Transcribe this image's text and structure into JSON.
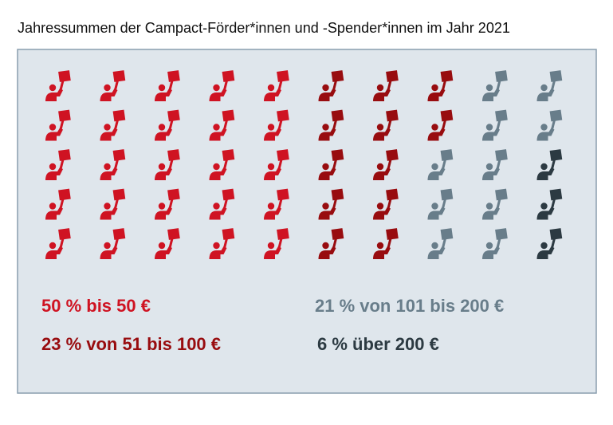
{
  "chart_data": {
    "type": "pictogram",
    "title": "Jahressummen der Campact-Förder*innen und -Spender*innen im Jahr 2021",
    "values": [
      50,
      23,
      21,
      6
    ],
    "value_labels": [
      "50 % bis 50 €",
      "23 % von 51 bis 100 €",
      "21 % von 101 bis 200 €",
      "6 % über 200 €"
    ],
    "colors": [
      "#cf1322",
      "#980c0f",
      "#687d8a",
      "#2c3a42"
    ]
  }
}
